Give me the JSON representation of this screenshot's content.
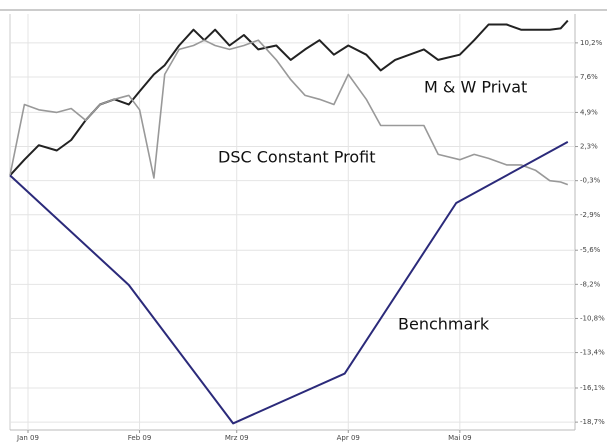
{
  "chart_data": {
    "type": "line",
    "annotations": [
      "M & W Privat",
      "DSC Constant Profit",
      "Benchmark"
    ],
    "xlim": [
      0,
      157
    ],
    "xticks": [
      {
        "value": 5,
        "label": "Jan 09"
      },
      {
        "value": 36,
        "label": "Feb 09"
      },
      {
        "value": 63,
        "label": "Mrz 09"
      },
      {
        "value": 94,
        "label": "Apr 09"
      },
      {
        "value": 125,
        "label": "Mai 09"
      }
    ],
    "ylim": [
      -19.3,
      12.4
    ],
    "yticks": [
      {
        "value": 10.2,
        "label": "10,2%"
      },
      {
        "value": 7.6,
        "label": "7,6%"
      },
      {
        "value": 4.9,
        "label": "4,9%"
      },
      {
        "value": 2.3,
        "label": "2,3%"
      },
      {
        "value": -0.3,
        "label": "-0,3%"
      },
      {
        "value": -2.9,
        "label": "-2,9%"
      },
      {
        "value": -5.6,
        "label": "-5,6%"
      },
      {
        "value": -8.2,
        "label": "-8,2%"
      },
      {
        "value": -10.8,
        "label": "-10,8%"
      },
      {
        "value": -13.4,
        "label": "-13,4%"
      },
      {
        "value": -16.1,
        "label": "-16,1%"
      },
      {
        "value": -18.7,
        "label": "-18,7%"
      }
    ],
    "grid": true,
    "series": [
      {
        "name": "M & W Privat",
        "color": "#222222",
        "x": [
          0,
          4,
          8,
          13,
          17,
          21,
          25,
          29,
          33,
          36,
          40,
          43,
          47,
          51,
          54,
          57,
          61,
          65,
          69,
          74,
          78,
          82,
          86,
          90,
          94,
          99,
          103,
          107,
          111,
          115,
          119,
          125,
          129,
          133,
          138,
          142,
          146,
          150,
          153,
          155
        ],
        "values": [
          0.1,
          1.3,
          2.4,
          2.0,
          2.8,
          4.3,
          5.5,
          5.9,
          5.5,
          6.5,
          7.8,
          8.5,
          10.0,
          11.2,
          10.4,
          11.2,
          10.0,
          10.8,
          9.7,
          10.0,
          8.9,
          9.7,
          10.4,
          9.3,
          10.0,
          9.3,
          8.1,
          8.9,
          9.3,
          9.7,
          8.9,
          9.3,
          10.4,
          11.6,
          11.6,
          11.2,
          11.2,
          11.2,
          11.3,
          11.9
        ]
      },
      {
        "name": "DSC Constant Profit",
        "color": "#999999",
        "x": [
          0,
          4,
          8,
          13,
          17,
          21,
          25,
          29,
          33,
          36,
          40,
          43,
          47,
          51,
          54,
          57,
          61,
          65,
          69,
          74,
          78,
          82,
          86,
          90,
          94,
          99,
          103,
          107,
          111,
          115,
          119,
          125,
          129,
          133,
          138,
          142,
          146,
          150,
          153,
          155
        ],
        "values": [
          0.1,
          5.5,
          5.1,
          4.9,
          5.2,
          4.3,
          5.5,
          5.9,
          6.2,
          5.1,
          -0.1,
          7.8,
          9.7,
          10.0,
          10.4,
          10.0,
          9.7,
          10.0,
          10.4,
          8.9,
          7.4,
          6.2,
          5.9,
          5.5,
          7.8,
          5.9,
          3.9,
          3.9,
          3.9,
          3.9,
          1.7,
          1.3,
          1.7,
          1.4,
          0.9,
          0.9,
          0.5,
          -0.3,
          -0.4,
          -0.6
        ]
      },
      {
        "name": "Benchmark",
        "color": "#2b2a7a",
        "x": [
          0,
          33,
          62,
          93,
          124,
          155
        ],
        "values": [
          0.1,
          -8.25,
          -18.8,
          -15.0,
          -2.0,
          2.65
        ]
      }
    ]
  }
}
